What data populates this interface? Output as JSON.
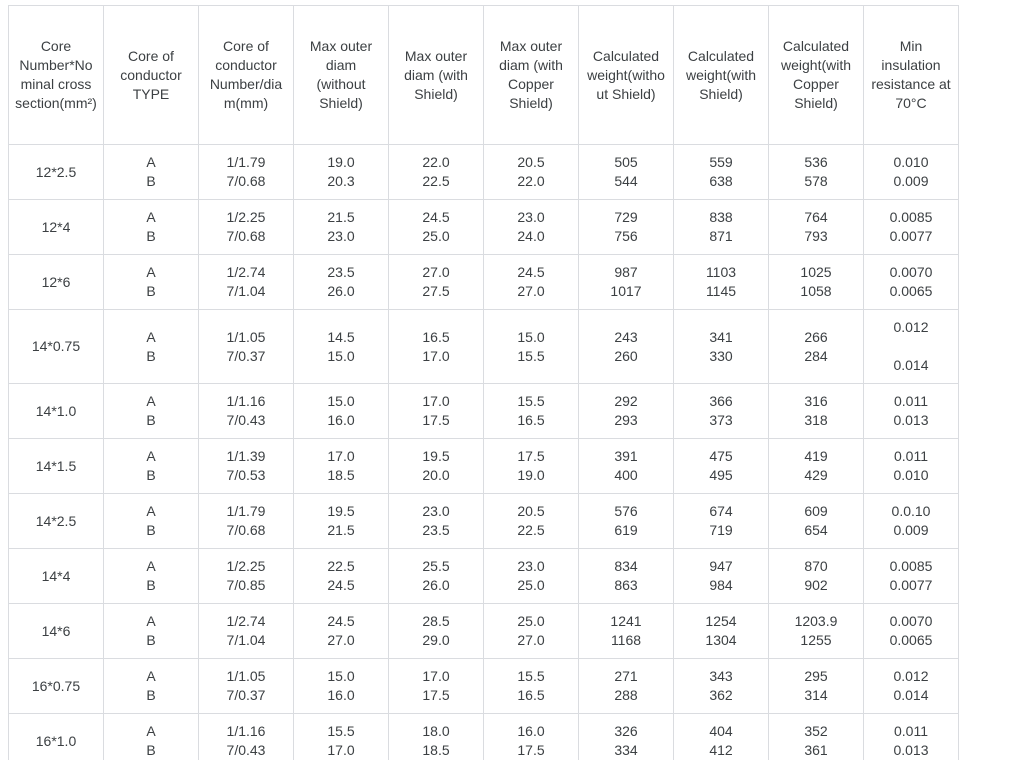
{
  "colors": {
    "border": "#dadce0",
    "text": "#3c4043",
    "background": "#ffffff"
  },
  "table": {
    "headers": [
      "Core Number*Nominal cross section(mm²)",
      "Core of conductor TYPE",
      "Core of conductor Number/diam(mm)",
      "Max outer diam (without Shield)",
      "Max outer diam (with Shield)",
      "Max outer diam (with Copper Shield)",
      "Calculated weight(without Shield)",
      "Calculated weight(with Shield)",
      "Calculated weight(with Copper Shield)",
      "Min insulation resistance at 70°C"
    ],
    "rows": [
      {
        "size": "12*2.5",
        "tall": false,
        "cells": [
          [
            "A",
            "B"
          ],
          [
            "1/1.79",
            "7/0.68"
          ],
          [
            "19.0",
            "20.3"
          ],
          [
            "22.0",
            "22.5"
          ],
          [
            "20.5",
            "22.0"
          ],
          [
            "505",
            "544"
          ],
          [
            "559",
            "638"
          ],
          [
            "536",
            "578"
          ],
          [
            "0.010",
            "0.009"
          ]
        ]
      },
      {
        "size": "12*4",
        "tall": false,
        "cells": [
          [
            "A",
            "B"
          ],
          [
            "1/2.25",
            "7/0.68"
          ],
          [
            "21.5",
            "23.0"
          ],
          [
            "24.5",
            "25.0"
          ],
          [
            "23.0",
            "24.0"
          ],
          [
            "729",
            "756"
          ],
          [
            "838",
            "871"
          ],
          [
            "764",
            "793"
          ],
          [
            "0.0085",
            "0.0077"
          ]
        ]
      },
      {
        "size": "12*6",
        "tall": false,
        "cells": [
          [
            "A",
            "B"
          ],
          [
            "1/2.74",
            "7/1.04"
          ],
          [
            "23.5",
            "26.0"
          ],
          [
            "27.0",
            "27.5"
          ],
          [
            "24.5",
            "27.0"
          ],
          [
            "987",
            "1017"
          ],
          [
            "1103",
            "1145"
          ],
          [
            "1025",
            "1058"
          ],
          [
            "0.0070",
            "0.0065"
          ]
        ]
      },
      {
        "size": "14*0.75",
        "tall": true,
        "cells": [
          [
            "A",
            "B"
          ],
          [
            "1/1.05",
            "7/0.37"
          ],
          [
            "14.5",
            "15.0"
          ],
          [
            "16.5",
            "17.0"
          ],
          [
            "15.0",
            "15.5"
          ],
          [
            "243",
            "260"
          ],
          [
            "341",
            "330"
          ],
          [
            "266",
            "284"
          ],
          [
            "0.012",
            "",
            "0.014"
          ]
        ]
      },
      {
        "size": "14*1.0",
        "tall": false,
        "cells": [
          [
            "A",
            "B"
          ],
          [
            "1/1.16",
            "7/0.43"
          ],
          [
            "15.0",
            "16.0"
          ],
          [
            "17.0",
            "17.5"
          ],
          [
            "15.5",
            "16.5"
          ],
          [
            "292",
            "293"
          ],
          [
            "366",
            "373"
          ],
          [
            "316",
            "318"
          ],
          [
            "0.011",
            "0.013"
          ]
        ]
      },
      {
        "size": "14*1.5",
        "tall": false,
        "cells": [
          [
            "A",
            "B"
          ],
          [
            "1/1.39",
            "7/0.53"
          ],
          [
            "17.0",
            "18.5"
          ],
          [
            "19.5",
            "20.0"
          ],
          [
            "17.5",
            "19.0"
          ],
          [
            "391",
            "400"
          ],
          [
            "475",
            "495"
          ],
          [
            "419",
            "429"
          ],
          [
            "0.011",
            "0.010"
          ]
        ]
      },
      {
        "size": "14*2.5",
        "tall": false,
        "cells": [
          [
            "A",
            "B"
          ],
          [
            "1/1.79",
            "7/0.68"
          ],
          [
            "19.5",
            "21.5"
          ],
          [
            "23.0",
            "23.5"
          ],
          [
            "20.5",
            "22.5"
          ],
          [
            "576",
            "619"
          ],
          [
            "674",
            "719"
          ],
          [
            "609",
            "654"
          ],
          [
            "0.0.10",
            "0.009"
          ]
        ]
      },
      {
        "size": "14*4",
        "tall": false,
        "cells": [
          [
            "A",
            "B"
          ],
          [
            "1/2.25",
            "7/0.85"
          ],
          [
            "22.5",
            "24.5"
          ],
          [
            "25.5",
            "26.0"
          ],
          [
            "23.0",
            "25.0"
          ],
          [
            "834",
            "863"
          ],
          [
            "947",
            "984"
          ],
          [
            "870",
            "902"
          ],
          [
            "0.0085",
            "0.0077"
          ]
        ]
      },
      {
        "size": "14*6",
        "tall": false,
        "cells": [
          [
            "A",
            "B"
          ],
          [
            "1/2.74",
            "7/1.04"
          ],
          [
            "24.5",
            "27.0"
          ],
          [
            "28.5",
            "29.0"
          ],
          [
            "25.0",
            "27.0"
          ],
          [
            "1241",
            "1168"
          ],
          [
            "1254",
            "1304"
          ],
          [
            "1203.9",
            "1255"
          ],
          [
            "0.0070",
            "0.0065"
          ]
        ]
      },
      {
        "size": "16*0.75",
        "tall": false,
        "cells": [
          [
            "A",
            "B"
          ],
          [
            "1/1.05",
            "7/0.37"
          ],
          [
            "15.0",
            "16.0"
          ],
          [
            "17.0",
            "17.5"
          ],
          [
            "15.5",
            "16.5"
          ],
          [
            "271",
            "288"
          ],
          [
            "343",
            "362"
          ],
          [
            "295",
            "314"
          ],
          [
            "0.012",
            "0.014"
          ]
        ]
      },
      {
        "size": "16*1.0",
        "tall": false,
        "cells": [
          [
            "A",
            "B"
          ],
          [
            "1/1.16",
            "7/0.43"
          ],
          [
            "15.5",
            "17.0"
          ],
          [
            "18.0",
            "18.5"
          ],
          [
            "16.0",
            "17.5"
          ],
          [
            "326",
            "334"
          ],
          [
            "404",
            "412"
          ],
          [
            "352",
            "361"
          ],
          [
            "0.011",
            "0.013"
          ]
        ]
      }
    ]
  }
}
